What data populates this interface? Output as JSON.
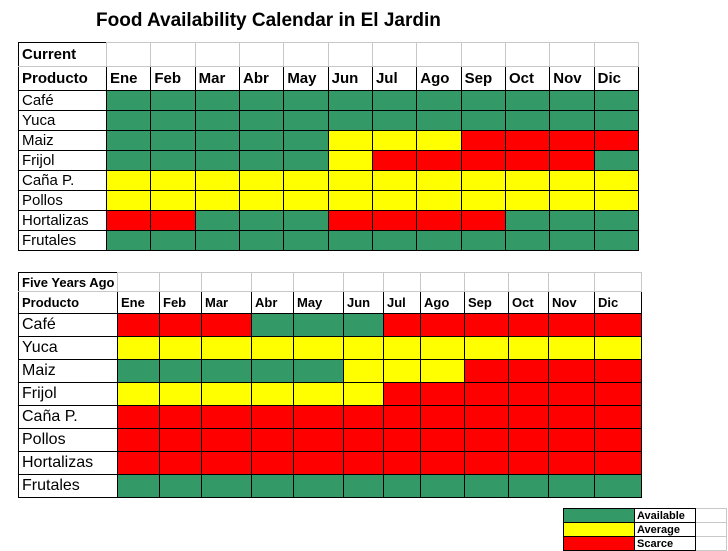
{
  "title": "Food Availability Calendar in El Jardin",
  "colors": {
    "G": "#339966",
    "Y": "#ffff00",
    "R": "#ff0000"
  },
  "chart_data": [
    {
      "type": "table",
      "section_label": "Current",
      "header_label": "Producto",
      "months": [
        "Ene",
        "Feb",
        "Mar",
        "Abr",
        "May",
        "Jun",
        "Jul",
        "Ago",
        "Sep",
        "Oct",
        "Nov",
        "Dic"
      ],
      "rows": [
        {
          "product": "Café",
          "status": [
            "G",
            "G",
            "G",
            "G",
            "G",
            "G",
            "G",
            "G",
            "G",
            "G",
            "G",
            "G"
          ]
        },
        {
          "product": "Yuca",
          "status": [
            "G",
            "G",
            "G",
            "G",
            "G",
            "G",
            "G",
            "G",
            "G",
            "G",
            "G",
            "G"
          ]
        },
        {
          "product": "Maiz",
          "status": [
            "G",
            "G",
            "G",
            "G",
            "G",
            "Y",
            "Y",
            "Y",
            "R",
            "R",
            "R",
            "R"
          ]
        },
        {
          "product": "Frijol",
          "status": [
            "G",
            "G",
            "G",
            "G",
            "G",
            "Y",
            "R",
            "R",
            "R",
            "R",
            "R",
            "G"
          ]
        },
        {
          "product": "Caña P.",
          "status": [
            "Y",
            "Y",
            "Y",
            "Y",
            "Y",
            "Y",
            "Y",
            "Y",
            "Y",
            "Y",
            "Y",
            "Y"
          ]
        },
        {
          "product": "Pollos",
          "status": [
            "Y",
            "Y",
            "Y",
            "Y",
            "Y",
            "Y",
            "Y",
            "Y",
            "Y",
            "Y",
            "Y",
            "Y"
          ]
        },
        {
          "product": "Hortalizas",
          "status": [
            "R",
            "R",
            "G",
            "G",
            "G",
            "R",
            "R",
            "R",
            "R",
            "G",
            "G",
            "G"
          ]
        },
        {
          "product": "Frutales",
          "status": [
            "G",
            "G",
            "G",
            "G",
            "G",
            "G",
            "G",
            "G",
            "G",
            "G",
            "G",
            "G"
          ]
        }
      ]
    },
    {
      "type": "table",
      "section_label": "Five Years Ago",
      "header_label": "Producto",
      "months": [
        "Ene",
        "Feb",
        "Mar",
        "Abr",
        "May",
        "Jun",
        "Jul",
        "Ago",
        "Sep",
        "Oct",
        "Nov",
        "Dic"
      ],
      "rows": [
        {
          "product": "Café",
          "status": [
            "R",
            "R",
            "R",
            "G",
            "G",
            "G",
            "R",
            "R",
            "R",
            "R",
            "R",
            "R"
          ]
        },
        {
          "product": "Yuca",
          "status": [
            "Y",
            "Y",
            "Y",
            "Y",
            "Y",
            "Y",
            "Y",
            "Y",
            "Y",
            "Y",
            "Y",
            "Y"
          ]
        },
        {
          "product": "Maiz",
          "status": [
            "G",
            "G",
            "G",
            "G",
            "G",
            "Y",
            "Y",
            "Y",
            "R",
            "R",
            "R",
            "R"
          ]
        },
        {
          "product": "Frijol",
          "status": [
            "Y",
            "Y",
            "Y",
            "Y",
            "Y",
            "Y",
            "R",
            "R",
            "R",
            "R",
            "R",
            "R"
          ]
        },
        {
          "product": "Caña P.",
          "status": [
            "R",
            "R",
            "R",
            "R",
            "R",
            "R",
            "R",
            "R",
            "R",
            "R",
            "R",
            "R"
          ]
        },
        {
          "product": "Pollos",
          "status": [
            "R",
            "R",
            "R",
            "R",
            "R",
            "R",
            "R",
            "R",
            "R",
            "R",
            "R",
            "R"
          ]
        },
        {
          "product": "Hortalizas",
          "status": [
            "R",
            "R",
            "R",
            "R",
            "R",
            "R",
            "R",
            "R",
            "R",
            "R",
            "R",
            "R"
          ]
        },
        {
          "product": "Frutales",
          "status": [
            "G",
            "G",
            "G",
            "G",
            "G",
            "G",
            "G",
            "G",
            "G",
            "G",
            "G",
            "G"
          ]
        }
      ]
    }
  ],
  "legend": [
    {
      "code": "G",
      "label": "Available"
    },
    {
      "code": "Y",
      "label": "Average"
    },
    {
      "code": "R",
      "label": "Scarce"
    }
  ]
}
